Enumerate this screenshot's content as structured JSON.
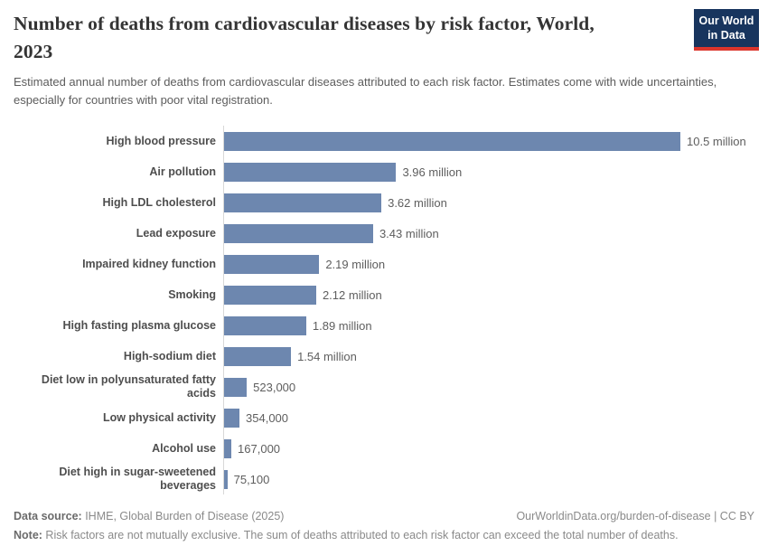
{
  "header": {
    "title_line1": "Number of deaths from cardiovascular diseases by risk factor, World,",
    "title_line2": "2023",
    "subtitle": "Estimated annual number of deaths from cardiovascular diseases attributed to each risk factor. Estimates come with wide uncertainties, especially for countries with poor vital registration.",
    "logo": {
      "line1": "Our World",
      "line2": "in Data",
      "bg_color": "#18355e",
      "accent_color": "#dc352c"
    }
  },
  "chart_data": {
    "type": "bar",
    "orientation": "horizontal",
    "title": "Number of deaths from cardiovascular diseases by risk factor, World, 2023",
    "categories": [
      "High blood pressure",
      "Air pollution",
      "High LDL cholesterol",
      "Lead exposure",
      "Impaired kidney function",
      "Smoking",
      "High fasting plasma glucose",
      "High-sodium diet",
      "Diet low in polyunsaturated fatty acids",
      "Low physical activity",
      "Alcohol use",
      "Diet high in sugar-sweetened beverages"
    ],
    "values": [
      10500000,
      3960000,
      3620000,
      3430000,
      2190000,
      2120000,
      1890000,
      1540000,
      523000,
      354000,
      167000,
      75100
    ],
    "value_labels": [
      "10.5 million",
      "3.96 million",
      "3.62 million",
      "3.43 million",
      "2.19 million",
      "2.12 million",
      "1.89 million",
      "1.54 million",
      "523,000",
      "354,000",
      "167,000",
      "75,100"
    ],
    "xlabel": "",
    "ylabel": "",
    "xlim": [
      0,
      10500000
    ],
    "grid": false,
    "legend": "none",
    "bar_color": "#6d87af",
    "axis_line_color": "#d8d8d8"
  },
  "footer": {
    "datasource_label": "Data source:",
    "datasource_value": " IHME, Global Burden of Disease (2025)",
    "link_text": "OurWorldinData.org/burden-of-disease | CC BY",
    "note_label": "Note:",
    "note_value": " Risk factors are not mutually exclusive. The sum of deaths attributed to each risk factor can exceed the total number of deaths."
  }
}
